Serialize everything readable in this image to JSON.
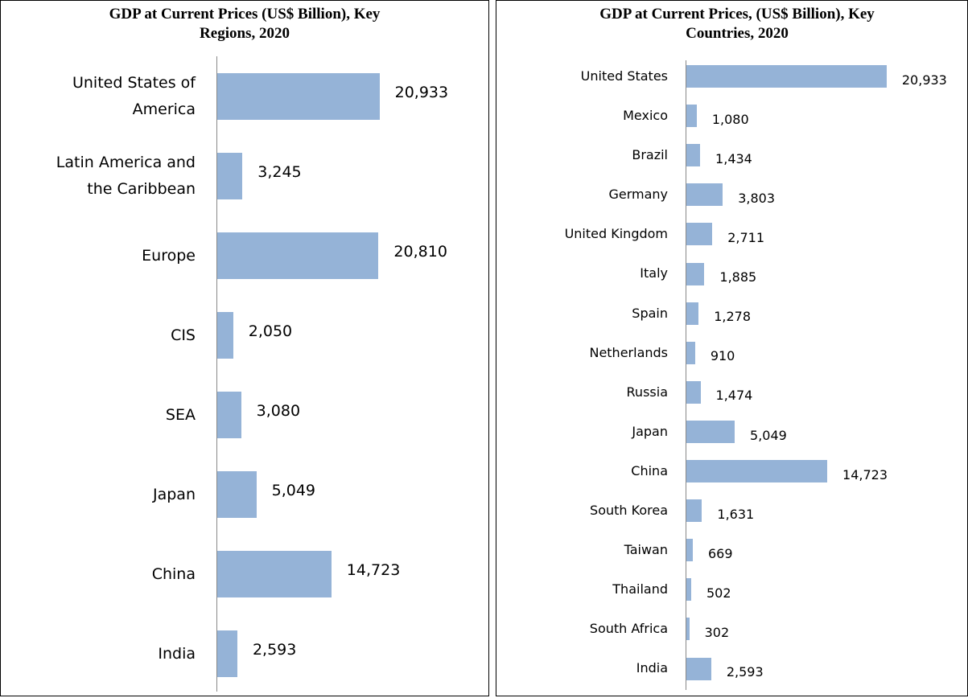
{
  "chart_data": [
    {
      "type": "bar",
      "title": "GDP at Current Prices (US$ Billion), Key Regions, 2020",
      "categories": [
        "United States of America",
        "Latin America and the Caribbean",
        "Europe",
        "CIS",
        "SEA",
        "Japan",
        "China",
        "India"
      ],
      "values": [
        20933,
        3245,
        20810,
        2050,
        3080,
        5049,
        14723,
        2593
      ],
      "value_labels": [
        "20,933",
        "3,245",
        "20,810",
        "2,050",
        "3,080",
        "5,049",
        "14,723",
        "2,593"
      ],
      "color": "#95b3d7",
      "xlim": [
        0,
        21700
      ]
    },
    {
      "type": "bar",
      "title": "GDP at Current Prices, (US$ Billion), Key Countries, 2020",
      "categories": [
        "United States",
        "Mexico",
        "Brazil",
        "Germany",
        "United Kingdom",
        "Italy",
        "Spain",
        "Netherlands",
        "Russia",
        "Japan",
        "China",
        "South Korea",
        "Taiwan",
        "Thailand",
        "South Africa",
        "India"
      ],
      "values": [
        20933,
        1080,
        1434,
        3803,
        2711,
        1885,
        1278,
        910,
        1474,
        5049,
        14723,
        1631,
        669,
        502,
        302,
        2593
      ],
      "value_labels": [
        "20,933",
        "1,080",
        "1,434",
        "3,803",
        "2,711",
        "1,885",
        "1,278",
        "910",
        "1,474",
        "5,049",
        "14,723",
        "1,631",
        "669",
        "502",
        "302",
        "2,593"
      ],
      "color": "#95b3d7",
      "xlim": [
        0,
        21700
      ]
    }
  ]
}
